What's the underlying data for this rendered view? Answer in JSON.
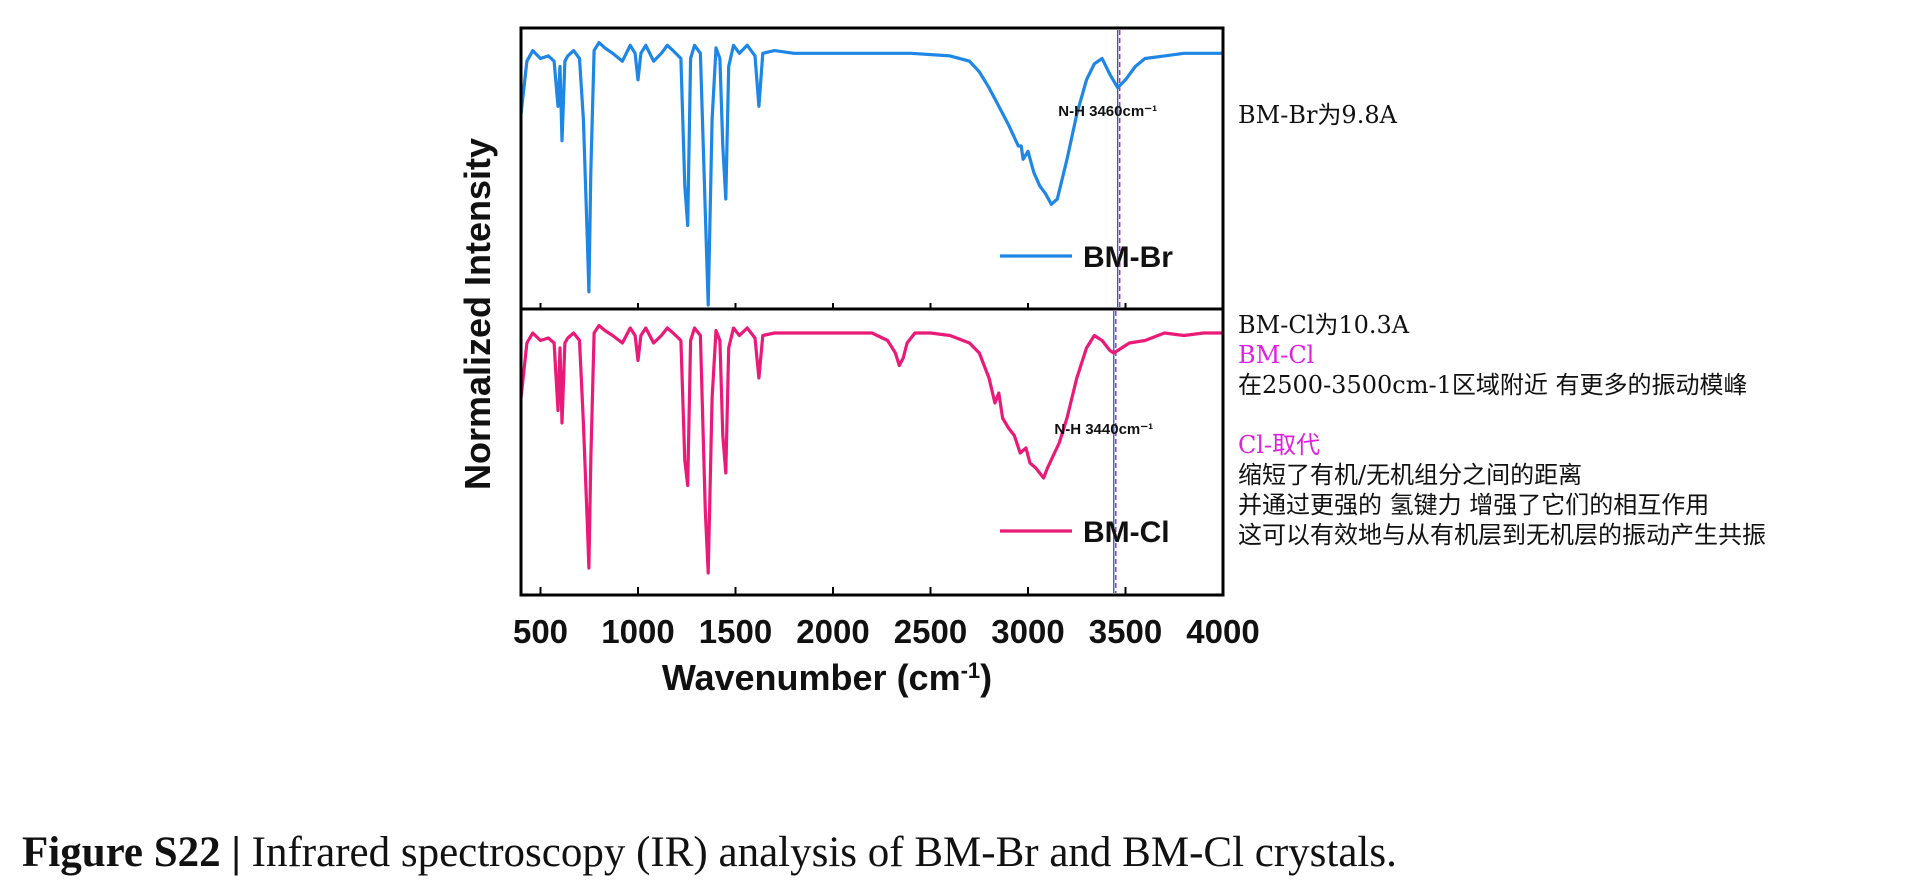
{
  "chart_data": {
    "type": "line",
    "panels": [
      {
        "series": [
          {
            "name": "BM-Br",
            "color": "#1e87e6",
            "x": [
              400,
              430,
              460,
              500,
              540,
              570,
              590,
              600,
              610,
              625,
              640,
              670,
              700,
              720,
              740,
              748,
              758,
              775,
              800,
              830,
              870,
              920,
              960,
              985,
              1000,
              1015,
              1040,
              1080,
              1120,
              1150,
              1180,
              1220,
              1240,
              1255,
              1270,
              1290,
              1320,
              1345,
              1360,
              1380,
              1400,
              1420,
              1435,
              1450,
              1465,
              1490,
              1520,
              1560,
              1600,
              1620,
              1640,
              1700,
              1800,
              1900,
              2000,
              2200,
              2400,
              2600,
              2700,
              2750,
              2800,
              2850,
              2900,
              2950,
              2965,
              2975,
              3000,
              3030,
              3060,
              3090,
              3120,
              3150,
              3200,
              3250,
              3300,
              3340,
              3380,
              3420,
              3460,
              3500,
              3550,
              3600,
              3700,
              3800,
              3900,
              4000
            ],
            "y": [
              0.72,
              0.92,
              0.96,
              0.93,
              0.94,
              0.92,
              0.75,
              0.9,
              0.62,
              0.92,
              0.94,
              0.96,
              0.93,
              0.7,
              0.25,
              0.05,
              0.5,
              0.96,
              0.99,
              0.97,
              0.95,
              0.92,
              0.98,
              0.95,
              0.85,
              0.95,
              0.98,
              0.92,
              0.95,
              0.98,
              0.96,
              0.93,
              0.45,
              0.3,
              0.93,
              0.98,
              0.95,
              0.35,
              0.0,
              0.7,
              0.97,
              0.93,
              0.6,
              0.4,
              0.9,
              0.98,
              0.95,
              0.98,
              0.94,
              0.75,
              0.95,
              0.96,
              0.95,
              0.95,
              0.95,
              0.95,
              0.95,
              0.94,
              0.92,
              0.88,
              0.82,
              0.75,
              0.68,
              0.6,
              0.6,
              0.55,
              0.58,
              0.5,
              0.45,
              0.42,
              0.38,
              0.4,
              0.55,
              0.72,
              0.85,
              0.91,
              0.93,
              0.87,
              0.82,
              0.85,
              0.9,
              0.93,
              0.94,
              0.95,
              0.95,
              0.95
            ]
          }
        ],
        "legend": "BM-Br",
        "annotation": "N-H 3460cm⁻¹",
        "marker_x": 3460
      },
      {
        "series": [
          {
            "name": "BM-Cl",
            "color": "#ea1a78",
            "x": [
              400,
              430,
              460,
              500,
              540,
              570,
              590,
              600,
              610,
              625,
              640,
              670,
              700,
              720,
              740,
              748,
              758,
              775,
              800,
              830,
              870,
              920,
              960,
              985,
              1000,
              1015,
              1040,
              1080,
              1120,
              1150,
              1180,
              1220,
              1240,
              1255,
              1270,
              1290,
              1320,
              1345,
              1360,
              1380,
              1400,
              1420,
              1435,
              1450,
              1465,
              1490,
              1520,
              1560,
              1600,
              1620,
              1640,
              1700,
              1800,
              1900,
              2000,
              2100,
              2200,
              2280,
              2320,
              2340,
              2360,
              2380,
              2420,
              2500,
              2600,
              2700,
              2750,
              2800,
              2830,
              2850,
              2870,
              2900,
              2930,
              2960,
              2990,
              3010,
              3040,
              3060,
              3080,
              3100,
              3130,
              3160,
              3200,
              3250,
              3300,
              3340,
              3380,
              3420,
              3440,
              3480,
              3520,
              3600,
              3700,
              3800,
              3900,
              4000
            ],
            "y": [
              0.7,
              0.92,
              0.96,
              0.93,
              0.94,
              0.92,
              0.65,
              0.9,
              0.6,
              0.92,
              0.94,
              0.96,
              0.93,
              0.6,
              0.2,
              0.02,
              0.45,
              0.96,
              0.99,
              0.97,
              0.95,
              0.92,
              0.98,
              0.95,
              0.85,
              0.95,
              0.98,
              0.92,
              0.95,
              0.98,
              0.96,
              0.93,
              0.45,
              0.35,
              0.93,
              0.98,
              0.95,
              0.25,
              0.0,
              0.7,
              0.97,
              0.93,
              0.55,
              0.4,
              0.9,
              0.98,
              0.95,
              0.98,
              0.94,
              0.78,
              0.95,
              0.96,
              0.96,
              0.96,
              0.96,
              0.96,
              0.96,
              0.93,
              0.88,
              0.83,
              0.86,
              0.92,
              0.96,
              0.96,
              0.95,
              0.92,
              0.88,
              0.78,
              0.68,
              0.72,
              0.62,
              0.58,
              0.55,
              0.48,
              0.5,
              0.44,
              0.42,
              0.4,
              0.38,
              0.42,
              0.47,
              0.52,
              0.62,
              0.78,
              0.9,
              0.95,
              0.93,
              0.89,
              0.88,
              0.9,
              0.92,
              0.93,
              0.96,
              0.95,
              0.96,
              0.96
            ]
          }
        ],
        "legend": "BM-Cl",
        "annotation": "N-H 3440cm⁻¹",
        "marker_x": 3440
      }
    ],
    "xlim": [
      400,
      4000
    ],
    "xticks": [
      "500",
      "1000",
      "1500",
      "2000",
      "2500",
      "3000",
      "3500",
      "4000"
    ],
    "xtick_values": [
      500,
      1000,
      1500,
      2000,
      2500,
      3000,
      3500,
      4000
    ],
    "xlabel": "Wavenumber (cm⁻¹)",
    "ylabel": "Normalized Intensity",
    "grid": false,
    "legend_position": "bottom-right"
  },
  "notes": {
    "br": [
      "BM-Br为9.8A"
    ],
    "cl": [
      {
        "text": "BM-Cl为10.3A",
        "color": "#111111"
      },
      {
        "text": "BM-Cl",
        "color": "#e020e0"
      },
      {
        "text": "在2500-3500cm-1区域附近 有更多的振动模峰",
        "color": "#111111"
      },
      {
        "text": "",
        "color": "#111111"
      },
      {
        "text": "Cl-取代",
        "color": "#e020e0"
      },
      {
        "text": "缩短了有机/无机组分之间的距离",
        "color": "#111111"
      },
      {
        "text": "并通过更强的 氢键力 增强了它们的相互作用",
        "color": "#111111"
      },
      {
        "text": "这可以有效地与从有机层到无机层的振动产生共振",
        "color": "#111111"
      }
    ]
  },
  "caption": {
    "label": "Figure S22 |",
    "text": " Infrared spectroscopy (IR) analysis of BM-Br and BM-Cl crystals."
  }
}
